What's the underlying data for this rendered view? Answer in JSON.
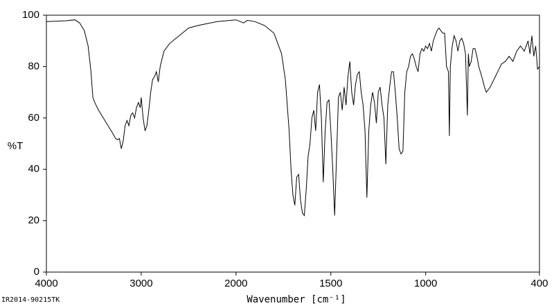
{
  "chart_data": {
    "type": "line",
    "xlabel": "Wavenumber [cm⁻¹]",
    "ylabel": "%T",
    "footer": "IR2014-90215TK",
    "xlim": [
      4000,
      400
    ],
    "ylim": [
      0,
      100
    ],
    "x_scale_break": 2000,
    "xticks": [
      4000,
      3000,
      2000,
      1500,
      1000,
      400
    ],
    "yticks": [
      0,
      20,
      40,
      60,
      80,
      100
    ],
    "x": [
      4000,
      3800,
      3700,
      3650,
      3600,
      3560,
      3530,
      3510,
      3490,
      3450,
      3400,
      3350,
      3300,
      3270,
      3250,
      3230,
      3210,
      3190,
      3170,
      3150,
      3130,
      3110,
      3090,
      3070,
      3050,
      3030,
      3010,
      3000,
      2980,
      2960,
      2940,
      2920,
      2900,
      2880,
      2860,
      2840,
      2820,
      2800,
      2760,
      2700,
      2600,
      2500,
      2400,
      2200,
      2000,
      1960,
      1940,
      1900,
      1850,
      1800,
      1760,
      1740,
      1720,
      1710,
      1700,
      1690,
      1680,
      1670,
      1660,
      1650,
      1640,
      1630,
      1620,
      1610,
      1600,
      1590,
      1580,
      1570,
      1560,
      1550,
      1540,
      1530,
      1520,
      1510,
      1500,
      1490,
      1480,
      1470,
      1460,
      1450,
      1440,
      1430,
      1420,
      1410,
      1400,
      1390,
      1380,
      1370,
      1360,
      1350,
      1340,
      1330,
      1320,
      1310,
      1300,
      1290,
      1280,
      1270,
      1260,
      1250,
      1240,
      1230,
      1220,
      1210,
      1200,
      1190,
      1180,
      1170,
      1160,
      1150,
      1140,
      1130,
      1120,
      1110,
      1100,
      1090,
      1080,
      1070,
      1060,
      1050,
      1040,
      1030,
      1020,
      1010,
      1000,
      990,
      980,
      970,
      960,
      950,
      940,
      930,
      920,
      910,
      900,
      890,
      880,
      875,
      870,
      860,
      850,
      840,
      830,
      820,
      810,
      800,
      790,
      780,
      775,
      770,
      760,
      750,
      740,
      730,
      720,
      700,
      690,
      680,
      670,
      660,
      640,
      620,
      600,
      580,
      560,
      540,
      520,
      500,
      480,
      460,
      450,
      440,
      430,
      420,
      410,
      400
    ],
    "series": [
      {
        "color": "#000000",
        "values": [
          97.5,
          97.8,
          98.2,
          97,
          94,
          88,
          78,
          68,
          66,
          63,
          60,
          57,
          54,
          52,
          51.5,
          52,
          48,
          51,
          57,
          59,
          57,
          61,
          62,
          60,
          64,
          66,
          64,
          68,
          60,
          55,
          57,
          63,
          70,
          75,
          76,
          78,
          74,
          80,
          86,
          89,
          92,
          95,
          96,
          97.5,
          98.2,
          97,
          98,
          97.5,
          96,
          93,
          85,
          75,
          55,
          40,
          30,
          26,
          37,
          38,
          28,
          23,
          22,
          32,
          45,
          50,
          60,
          63,
          55,
          70,
          73,
          60,
          35,
          55,
          66,
          67,
          55,
          40,
          22,
          45,
          68,
          70,
          63,
          72,
          65,
          76,
          82,
          70,
          65,
          73,
          77,
          78,
          70,
          65,
          55,
          29,
          55,
          65,
          70,
          66,
          58,
          70,
          72,
          65,
          60,
          42,
          65,
          72,
          78,
          78,
          70,
          60,
          48,
          46,
          47,
          70,
          78,
          80,
          84,
          85,
          83,
          80,
          78,
          85,
          87,
          86,
          88,
          87,
          89,
          86,
          90,
          92,
          94,
          95,
          94,
          93,
          93,
          80,
          78,
          53,
          80,
          88,
          92,
          90,
          86,
          90,
          91,
          89,
          85,
          61,
          85,
          80,
          82,
          87,
          87,
          84,
          80,
          75,
          72,
          70,
          71,
          72,
          75,
          78,
          81,
          82,
          84,
          82,
          86,
          88,
          86,
          90,
          85,
          92,
          84,
          88,
          79,
          80
        ]
      }
    ]
  }
}
